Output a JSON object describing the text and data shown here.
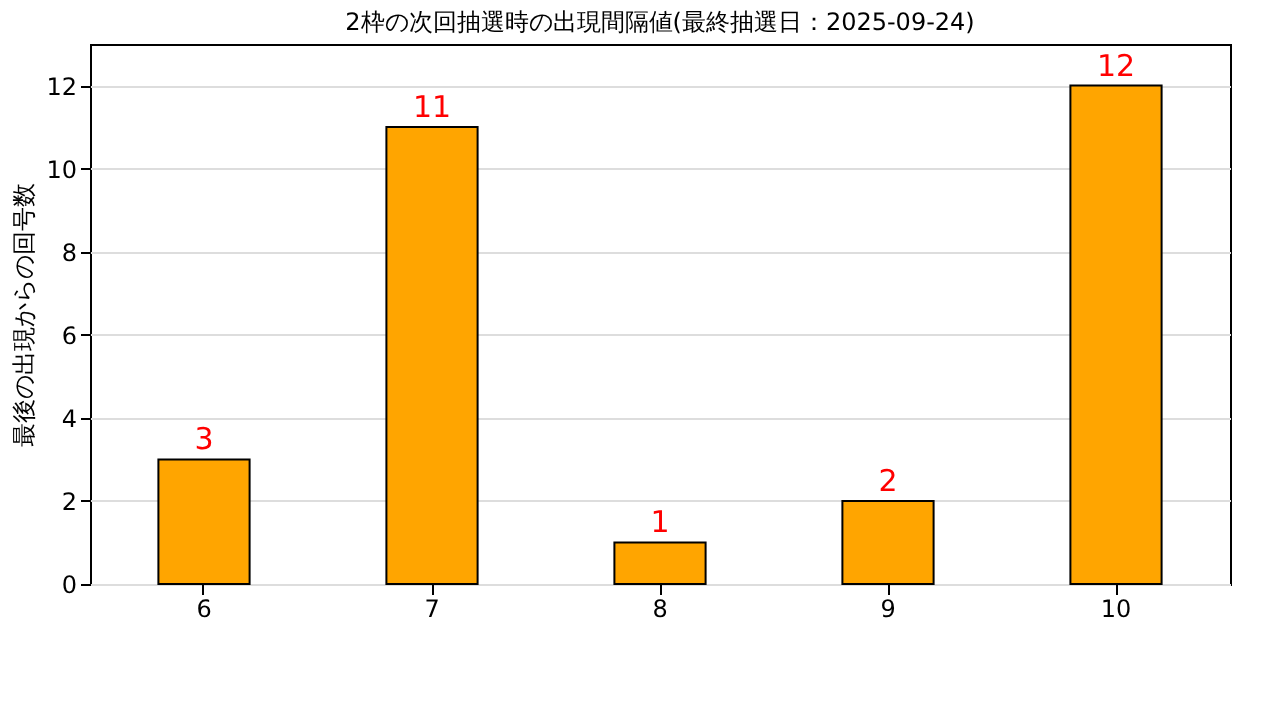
{
  "chart_data": {
    "type": "bar",
    "title": "2枠の次回抽選時の出現間隔値(最終抽選日：2025-09-24)",
    "ylabel": "最後の出現からの回号数",
    "categories": [
      "6",
      "7",
      "8",
      "9",
      "10"
    ],
    "values": [
      3,
      11,
      1,
      2,
      12
    ],
    "color": "#ffa500",
    "ylim": [
      0,
      13
    ],
    "yticks": [
      0,
      2,
      4,
      6,
      8,
      10,
      12
    ],
    "grid": "y",
    "data_labels": true
  }
}
